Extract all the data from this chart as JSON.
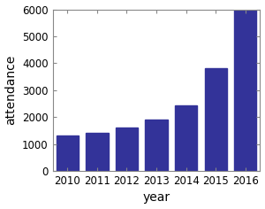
{
  "years": [
    "2010",
    "2011",
    "2012",
    "2013",
    "2014",
    "2015",
    "2016"
  ],
  "values": [
    1300,
    1400,
    1600,
    1900,
    2450,
    3800,
    6000
  ],
  "bar_color": "#333399",
  "xlabel": "year",
  "ylabel": "attendance",
  "ylim": [
    0,
    6000
  ],
  "yticks": [
    0,
    1000,
    2000,
    3000,
    4000,
    5000,
    6000
  ],
  "xlabel_fontsize": 10,
  "ylabel_fontsize": 10,
  "tick_fontsize": 8.5,
  "background_color": "#ffffff",
  "figure_color": "#ffffff",
  "bar_width": 0.75
}
